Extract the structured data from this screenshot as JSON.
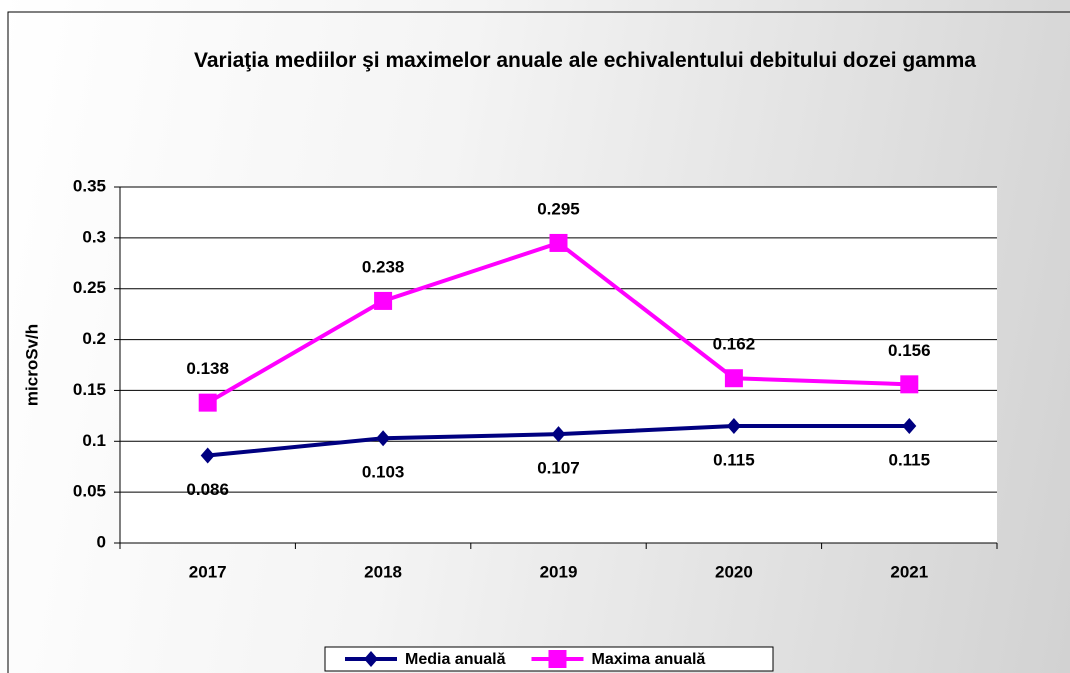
{
  "chart_data": {
    "type": "line",
    "title": "Variaţia mediilor şi maximelor anuale ale echivalentului debitului dozei gamma",
    "y_label": "microSv/h",
    "categories": [
      "2017",
      "2018",
      "2019",
      "2020",
      "2021"
    ],
    "series": [
      {
        "name": "Media anuală",
        "color": "#000080",
        "marker": "diamond",
        "label_position": "below",
        "values": [
          0.086,
          0.103,
          0.107,
          0.115,
          0.115
        ]
      },
      {
        "name": "Maxima anuală",
        "color": "#ff00ff",
        "marker": "square",
        "label_position": "above",
        "values": [
          0.138,
          0.238,
          0.295,
          0.162,
          0.156
        ]
      }
    ],
    "ylim": [
      0,
      0.35
    ],
    "yticks": [
      0,
      0.05,
      0.1,
      0.15,
      0.2,
      0.25,
      0.3,
      0.35
    ],
    "grid": true,
    "legend": "bottom"
  }
}
